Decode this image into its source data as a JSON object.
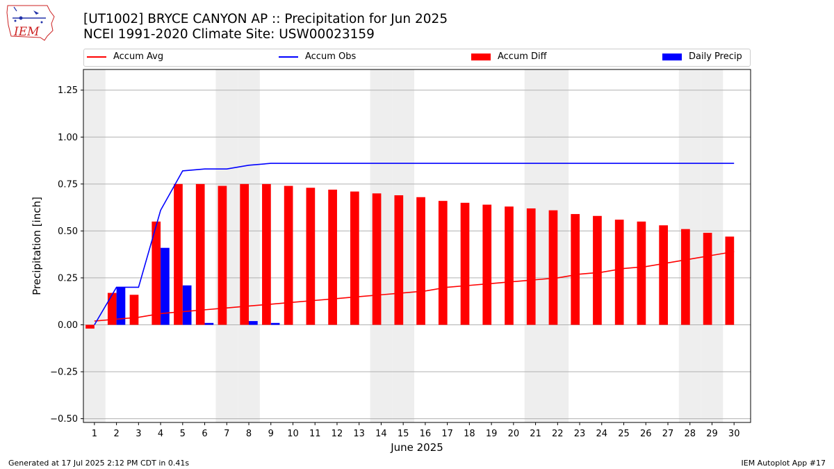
{
  "header": {
    "title": "[UT1002] BRYCE CANYON AP :: Precipitation for Jun 2025",
    "subtitle": "NCEI 1991-2020 Climate Site: USW00023159",
    "logo_text": "IEM"
  },
  "footer": {
    "generated": "Generated at 17 Jul 2025 2:12 PM CDT in 0.41s",
    "app": "IEM Autoplot App #17"
  },
  "colors": {
    "accum_avg": "#ff0000",
    "accum_obs": "#0000ff",
    "accum_diff": "#ff0000",
    "daily_precip": "#0000ff",
    "weekend_shade": "#eeeeee",
    "grid": "#b0b0b0"
  },
  "chart_data": {
    "type": "bar",
    "xlabel": "June 2025",
    "ylabel": "Precipitation [inch]",
    "ylim": [
      -0.52,
      1.36
    ],
    "yticks": [
      -0.5,
      -0.25,
      0.0,
      0.25,
      0.5,
      0.75,
      1.0,
      1.25
    ],
    "ytick_labels": [
      "−0.50",
      "−0.25",
      "0.00",
      "0.25",
      "0.50",
      "0.75",
      "1.00",
      "1.25"
    ],
    "grid": "horizontal",
    "legend_placement": "top",
    "x": [
      1,
      2,
      3,
      4,
      5,
      6,
      7,
      8,
      9,
      10,
      11,
      12,
      13,
      14,
      15,
      16,
      17,
      18,
      19,
      20,
      21,
      22,
      23,
      24,
      25,
      26,
      27,
      28,
      29,
      30
    ],
    "weekend_days": [
      1,
      7,
      8,
      14,
      15,
      21,
      22,
      28,
      29
    ],
    "series": [
      {
        "name": "Accum Avg",
        "kind": "line",
        "values": [
          0.02,
          0.03,
          0.04,
          0.06,
          0.07,
          0.08,
          0.09,
          0.1,
          0.11,
          0.12,
          0.13,
          0.14,
          0.15,
          0.16,
          0.17,
          0.18,
          0.2,
          0.21,
          0.22,
          0.23,
          0.24,
          0.25,
          0.27,
          0.28,
          0.3,
          0.31,
          0.33,
          0.35,
          0.37,
          0.39
        ]
      },
      {
        "name": "Accum Obs",
        "kind": "line",
        "values": [
          0.0,
          0.2,
          0.2,
          0.61,
          0.82,
          0.83,
          0.83,
          0.85,
          0.86,
          0.86,
          0.86,
          0.86,
          0.86,
          0.86,
          0.86,
          0.86,
          0.86,
          0.86,
          0.86,
          0.86,
          0.86,
          0.86,
          0.86,
          0.86,
          0.86,
          0.86,
          0.86,
          0.86,
          0.86,
          0.86
        ]
      },
      {
        "name": "Accum Diff",
        "kind": "bar",
        "values": [
          -0.02,
          0.17,
          0.16,
          0.55,
          0.75,
          0.75,
          0.74,
          0.75,
          0.75,
          0.74,
          0.73,
          0.72,
          0.71,
          0.7,
          0.69,
          0.68,
          0.66,
          0.65,
          0.64,
          0.63,
          0.62,
          0.61,
          0.59,
          0.58,
          0.56,
          0.55,
          0.53,
          0.51,
          0.49,
          0.47
        ]
      },
      {
        "name": "Daily Precip",
        "kind": "bar",
        "values": [
          0.0,
          0.2,
          0.0,
          0.41,
          0.21,
          0.01,
          0.0,
          0.02,
          0.01,
          0,
          0,
          0,
          0,
          0,
          0,
          0,
          0,
          0,
          0,
          0,
          0,
          0,
          0,
          0,
          0,
          0,
          0,
          0,
          0,
          0
        ]
      }
    ]
  }
}
